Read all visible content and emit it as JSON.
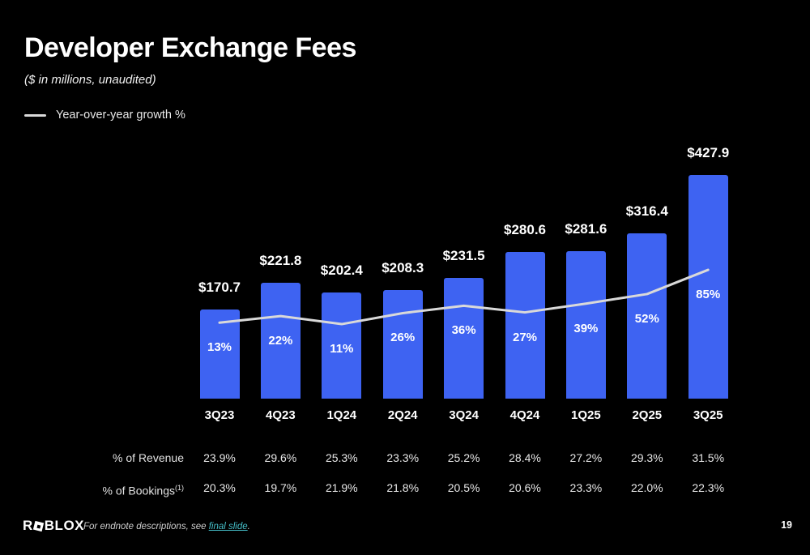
{
  "slide": {
    "title": "Developer Exchange Fees",
    "subtitle": "($ in millions, unaudited)",
    "legend_label": "Year-over-year growth %",
    "page_number": "19",
    "footer": {
      "note_prefix": "For endnote descriptions, see ",
      "note_link": "final slide",
      "note_suffix": ".",
      "logo_left": "R",
      "logo_right": "BLOX"
    }
  },
  "chart_data": {
    "type": "bar",
    "title": "Developer Exchange Fees",
    "subtitle": "($ in millions, unaudited)",
    "categories": [
      "3Q23",
      "4Q23",
      "1Q24",
      "2Q24",
      "3Q24",
      "4Q24",
      "1Q25",
      "2Q25",
      "3Q25"
    ],
    "series": [
      {
        "name": "Developer Exchange Fees ($ in millions)",
        "type": "bar",
        "values": [
          170.7,
          221.8,
          202.4,
          208.3,
          231.5,
          280.6,
          281.6,
          316.4,
          427.9
        ],
        "labels": [
          "$170.7",
          "$221.8",
          "$202.4",
          "$208.3",
          "$231.5",
          "$280.6",
          "$281.6",
          "$316.4",
          "$427.9"
        ],
        "color": "#3E63F2"
      },
      {
        "name": "Year-over-year growth %",
        "type": "line",
        "values": [
          13,
          22,
          11,
          26,
          36,
          27,
          39,
          52,
          85
        ],
        "labels": [
          "13%",
          "22%",
          "11%",
          "26%",
          "36%",
          "27%",
          "39%",
          "52%",
          "85%"
        ],
        "color": "#D9D9D9"
      }
    ],
    "xlabel": "",
    "ylabel": "",
    "grid": false,
    "legend_position": "top-left",
    "background": "#000000"
  },
  "table": {
    "rows": [
      {
        "label": "% of Revenue",
        "superscript": "",
        "values": [
          "23.9%",
          "29.6%",
          "25.3%",
          "23.3%",
          "25.2%",
          "28.4%",
          "27.2%",
          "29.3%",
          "31.5%"
        ]
      },
      {
        "label": "% of Bookings",
        "superscript": "(1)",
        "values": [
          "20.3%",
          "19.7%",
          "21.9%",
          "21.8%",
          "20.5%",
          "20.6%",
          "23.3%",
          "22.0%",
          "22.3%"
        ]
      }
    ]
  }
}
